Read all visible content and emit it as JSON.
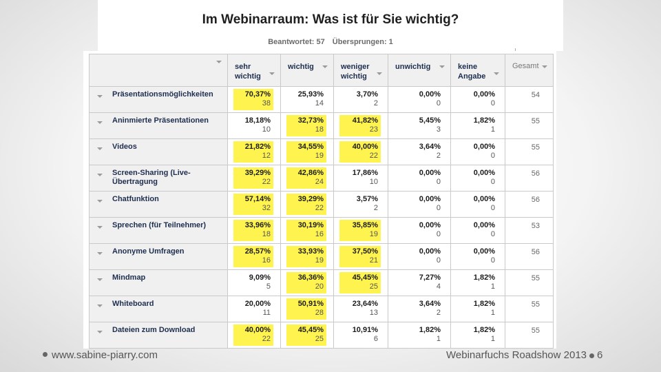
{
  "title": "Im Webinarraum: Was ist für Sie wichtig?",
  "stats": {
    "answered": "Beantwortet: 57",
    "skipped": "Übersprungen: 1"
  },
  "columns": [
    {
      "line1": "sehr",
      "line2": "wichtig"
    },
    {
      "line1": "wichtig",
      "line2": ""
    },
    {
      "line1": "weniger",
      "line2": "wichtig"
    },
    {
      "line1": "unwichtig",
      "line2": ""
    },
    {
      "line1": "keine",
      "line2": "Angabe"
    }
  ],
  "total_label": "Gesamt",
  "rows": [
    {
      "label": "Präsentationsmöglichkeiten",
      "total": "54",
      "cells": [
        {
          "pct": "70,37%",
          "count": "38",
          "hl": true
        },
        {
          "pct": "25,93%",
          "count": "14",
          "hl": false
        },
        {
          "pct": "3,70%",
          "count": "2",
          "hl": false
        },
        {
          "pct": "0,00%",
          "count": "0",
          "hl": false
        },
        {
          "pct": "0,00%",
          "count": "0",
          "hl": false
        }
      ]
    },
    {
      "label": "Aninmierte Präsentationen",
      "total": "55",
      "cells": [
        {
          "pct": "18,18%",
          "count": "10",
          "hl": false
        },
        {
          "pct": "32,73%",
          "count": "18",
          "hl": true
        },
        {
          "pct": "41,82%",
          "count": "23",
          "hl": true
        },
        {
          "pct": "5,45%",
          "count": "3",
          "hl": false
        },
        {
          "pct": "1,82%",
          "count": "1",
          "hl": false
        }
      ]
    },
    {
      "label": "Videos",
      "total": "55",
      "cells": [
        {
          "pct": "21,82%",
          "count": "12",
          "hl": true
        },
        {
          "pct": "34,55%",
          "count": "19",
          "hl": true
        },
        {
          "pct": "40,00%",
          "count": "22",
          "hl": true
        },
        {
          "pct": "3,64%",
          "count": "2",
          "hl": false
        },
        {
          "pct": "0,00%",
          "count": "0",
          "hl": false
        }
      ]
    },
    {
      "label": "Screen-Sharing (Live-Übertragung",
      "total": "56",
      "cells": [
        {
          "pct": "39,29%",
          "count": "22",
          "hl": true
        },
        {
          "pct": "42,86%",
          "count": "24",
          "hl": true
        },
        {
          "pct": "17,86%",
          "count": "10",
          "hl": false
        },
        {
          "pct": "0,00%",
          "count": "0",
          "hl": false
        },
        {
          "pct": "0,00%",
          "count": "0",
          "hl": false
        }
      ]
    },
    {
      "label": "Chatfunktion",
      "total": "56",
      "cells": [
        {
          "pct": "57,14%",
          "count": "32",
          "hl": true
        },
        {
          "pct": "39,29%",
          "count": "22",
          "hl": true
        },
        {
          "pct": "3,57%",
          "count": "2",
          "hl": false
        },
        {
          "pct": "0,00%",
          "count": "0",
          "hl": false
        },
        {
          "pct": "0,00%",
          "count": "0",
          "hl": false
        }
      ]
    },
    {
      "label": "Sprechen (für Teilnehmer)",
      "total": "53",
      "cells": [
        {
          "pct": "33,96%",
          "count": "18",
          "hl": true
        },
        {
          "pct": "30,19%",
          "count": "16",
          "hl": true
        },
        {
          "pct": "35,85%",
          "count": "19",
          "hl": true
        },
        {
          "pct": "0,00%",
          "count": "0",
          "hl": false
        },
        {
          "pct": "0,00%",
          "count": "0",
          "hl": false
        }
      ]
    },
    {
      "label": "Anonyme Umfragen",
      "total": "56",
      "cells": [
        {
          "pct": "28,57%",
          "count": "16",
          "hl": true
        },
        {
          "pct": "33,93%",
          "count": "19",
          "hl": true
        },
        {
          "pct": "37,50%",
          "count": "21",
          "hl": true
        },
        {
          "pct": "0,00%",
          "count": "0",
          "hl": false
        },
        {
          "pct": "0,00%",
          "count": "0",
          "hl": false
        }
      ]
    },
    {
      "label": "Mindmap",
      "total": "55",
      "cells": [
        {
          "pct": "9,09%",
          "count": "5",
          "hl": false
        },
        {
          "pct": "36,36%",
          "count": "20",
          "hl": true
        },
        {
          "pct": "45,45%",
          "count": "25",
          "hl": true
        },
        {
          "pct": "7,27%",
          "count": "4",
          "hl": false
        },
        {
          "pct": "1,82%",
          "count": "1",
          "hl": false
        }
      ]
    },
    {
      "label": "Whiteboard",
      "total": "55",
      "cells": [
        {
          "pct": "20,00%",
          "count": "11",
          "hl": false
        },
        {
          "pct": "50,91%",
          "count": "28",
          "hl": true
        },
        {
          "pct": "23,64%",
          "count": "13",
          "hl": false
        },
        {
          "pct": "3,64%",
          "count": "2",
          "hl": false
        },
        {
          "pct": "1,82%",
          "count": "1",
          "hl": false
        }
      ]
    },
    {
      "label": "Dateien zum Download",
      "total": "55",
      "cells": [
        {
          "pct": "40,00%",
          "count": "22",
          "hl": true
        },
        {
          "pct": "45,45%",
          "count": "25",
          "hl": true
        },
        {
          "pct": "10,91%",
          "count": "6",
          "hl": false
        },
        {
          "pct": "1,82%",
          "count": "1",
          "hl": false
        },
        {
          "pct": "1,82%",
          "count": "1",
          "hl": false
        }
      ]
    }
  ],
  "colors": {
    "highlight": "#fff44f",
    "header_bg": "#f0f0f0",
    "text_dark": "#1e2e4e"
  },
  "footer": {
    "left": "www.sabine-piarry.com",
    "right": "Webinarfuchs Roadshow 2013",
    "page": "6"
  }
}
